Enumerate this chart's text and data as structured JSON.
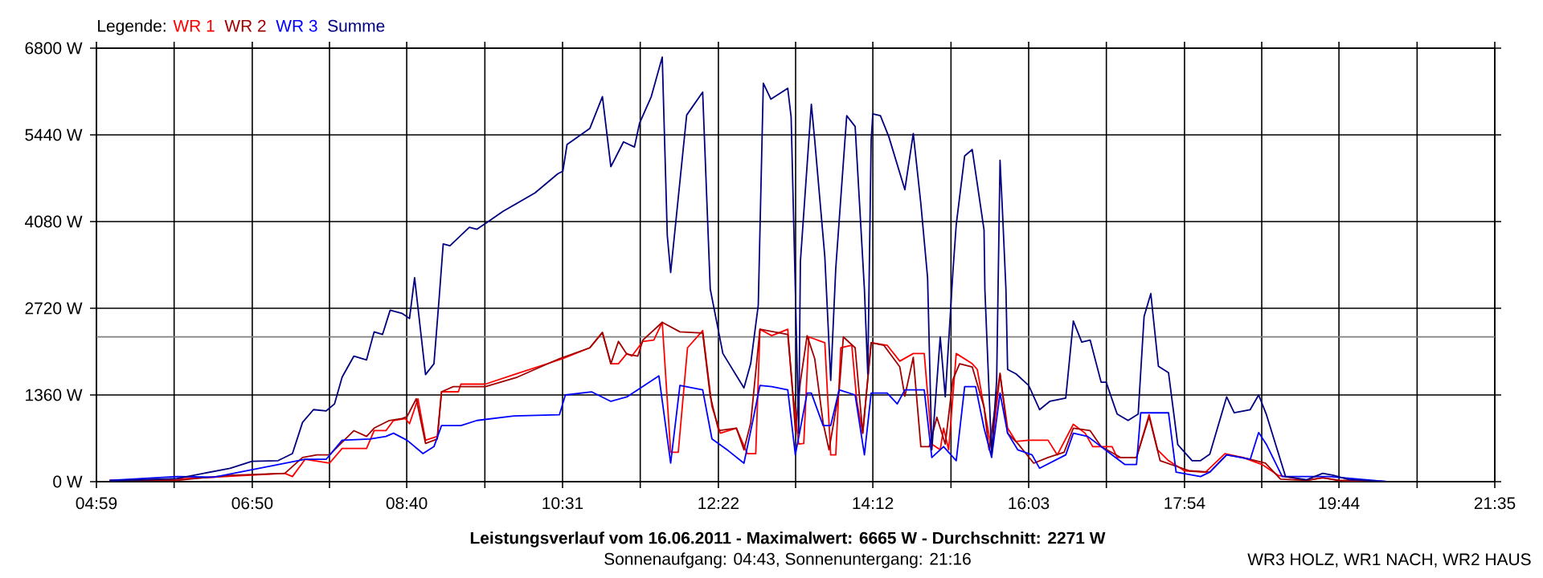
{
  "chart_data": {
    "type": "line",
    "title": "Leistungsverlauf vom 16.06.2011 - Maximalwert: 6665 W - Durchschnitt: 2271 W",
    "subtitle": "Sonnenaufgang: 04:43, Sonnenuntergang: 21:16",
    "annotations": [
      "WR3 HOLZ, WR1 NACH, WR2 HAUS"
    ],
    "legend_title": "Legende:",
    "legend": "top left",
    "grid": true,
    "line_style": "solid",
    "xlim": [
      4.98333,
      21.58333
    ],
    "xticks": [
      {
        "value": 4.98333,
        "label": "04:59"
      },
      {
        "value": 5.9056,
        "label": null
      },
      {
        "value": 6.83333,
        "label": "06:50"
      },
      {
        "value": 7.75,
        "label": null
      },
      {
        "value": 8.66667,
        "label": "08:40"
      },
      {
        "value": 9.5944,
        "label": null
      },
      {
        "value": 10.51667,
        "label": "10:31"
      },
      {
        "value": 11.4389,
        "label": null
      },
      {
        "value": 12.36667,
        "label": "12:22"
      },
      {
        "value": 13.2833,
        "label": null
      },
      {
        "value": 14.2,
        "label": "14:12"
      },
      {
        "value": 15.1278,
        "label": null
      },
      {
        "value": 16.05,
        "label": "16:03"
      },
      {
        "value": 16.9722,
        "label": null
      },
      {
        "value": 17.9,
        "label": "17:54"
      },
      {
        "value": 18.8167,
        "label": null
      },
      {
        "value": 19.73333,
        "label": "19:44"
      },
      {
        "value": 20.6611,
        "label": null
      },
      {
        "value": 21.58333,
        "label": "21:35"
      }
    ],
    "ylim": [
      0,
      6800
    ],
    "yticks": [
      {
        "value": 0,
        "label": "0 W"
      },
      {
        "value": 1360,
        "label": "1360 W"
      },
      {
        "value": 2720,
        "label": "2720 W"
      },
      {
        "value": 4080,
        "label": "4080 W"
      },
      {
        "value": 5440,
        "label": "5440 W"
      },
      {
        "value": 6800,
        "label": "6800 W"
      }
    ],
    "ref_lines": [
      {
        "axis": "y",
        "value": 2271,
        "color": "#808080"
      }
    ],
    "series": [
      {
        "name": "WR 1",
        "color": "#ff0000",
        "x": [
          5.14,
          5.94,
          6.51,
          7.22,
          7.31,
          7.46,
          7.75,
          7.9,
          8.19,
          8.28,
          8.42,
          8.51,
          8.65,
          8.7,
          8.8,
          8.89,
          9.03,
          9.08,
          9.28,
          9.31,
          9.6,
          9.94,
          10.52,
          10.84,
          10.99,
          11.09,
          11.18,
          11.28,
          11.34,
          11.47,
          11.6,
          11.7,
          11.8,
          11.89,
          12.0,
          12.18,
          12.29,
          12.39,
          12.58,
          12.71,
          12.81,
          12.86,
          13.0,
          13.19,
          13.24,
          13.32,
          13.38,
          13.44,
          13.63,
          13.7,
          13.76,
          13.82,
          13.95,
          14.01,
          14.08,
          14.18,
          14.37,
          14.52,
          14.68,
          14.81,
          14.9,
          15.0,
          15.04,
          15.1,
          15.19,
          15.38,
          15.44,
          15.61,
          15.71,
          15.8,
          15.9,
          16.05,
          16.28,
          16.39,
          16.58,
          16.72,
          16.81,
          17.04,
          17.1,
          17.33,
          17.48,
          17.58,
          17.71,
          17.9,
          18.15,
          18.38,
          18.59,
          18.82,
          19.01,
          19.35,
          19.54,
          19.73,
          20.3
        ],
        "values": [
          20,
          40,
          80,
          130,
          80,
          350,
          290,
          520,
          520,
          800,
          800,
          960,
          990,
          910,
          1300,
          650,
          710,
          1410,
          1410,
          1530,
          1530,
          1680,
          1930,
          2100,
          2340,
          1850,
          1850,
          2010,
          1970,
          2200,
          2220,
          2500,
          460,
          460,
          2100,
          2370,
          1180,
          760,
          840,
          440,
          440,
          2390,
          2290,
          2390,
          1510,
          590,
          600,
          2270,
          2180,
          420,
          420,
          2100,
          2140,
          1260,
          760,
          2180,
          2140,
          1890,
          2010,
          2010,
          590,
          500,
          840,
          500,
          2010,
          1850,
          1760,
          500,
          1680,
          840,
          630,
          650,
          650,
          420,
          900,
          760,
          550,
          550,
          380,
          380,
          1050,
          500,
          330,
          170,
          150,
          440,
          380,
          270,
          100,
          20,
          60,
          20,
          0
        ]
      },
      {
        "name": "WR 2",
        "color": "#a00000",
        "x": [
          5.14,
          5.94,
          6.57,
          7.22,
          7.43,
          7.6,
          7.75,
          8.04,
          8.19,
          8.28,
          8.46,
          8.61,
          8.67,
          8.78,
          8.89,
          9.03,
          9.08,
          9.22,
          9.6,
          9.98,
          10.48,
          10.84,
          10.99,
          11.09,
          11.18,
          11.28,
          11.41,
          11.47,
          11.7,
          11.91,
          12.18,
          12.27,
          12.37,
          12.58,
          12.67,
          12.75,
          12.86,
          13.19,
          13.24,
          13.28,
          13.34,
          13.42,
          13.51,
          13.61,
          13.68,
          13.8,
          13.85,
          13.99,
          14.08,
          14.18,
          14.33,
          14.52,
          14.58,
          14.68,
          14.77,
          14.87,
          14.96,
          15.06,
          15.15,
          15.23,
          15.38,
          15.52,
          15.58,
          15.71,
          15.8,
          15.92,
          16.11,
          16.28,
          16.47,
          16.58,
          16.78,
          16.91,
          17.14,
          17.33,
          17.48,
          17.61,
          17.96,
          18.2,
          18.4,
          18.59,
          18.86,
          19.04,
          19.35,
          19.54,
          19.73,
          20.3
        ],
        "values": [
          20,
          20,
          100,
          130,
          380,
          420,
          420,
          800,
          710,
          840,
          960,
          990,
          1020,
          1300,
          600,
          670,
          1410,
          1490,
          1490,
          1640,
          1930,
          2100,
          2340,
          1850,
          2200,
          2000,
          1970,
          2220,
          2500,
          2350,
          2330,
          1340,
          800,
          840,
          500,
          920,
          2390,
          2310,
          1570,
          800,
          1570,
          2290,
          1930,
          920,
          500,
          1430,
          2270,
          2100,
          760,
          2180,
          2140,
          1800,
          1340,
          1950,
          550,
          550,
          1010,
          590,
          1600,
          1850,
          1800,
          1170,
          500,
          1700,
          760,
          600,
          290,
          380,
          460,
          840,
          800,
          550,
          380,
          380,
          1020,
          330,
          170,
          150,
          420,
          380,
          290,
          40,
          20,
          60,
          20,
          0
        ]
      },
      {
        "name": "WR 3",
        "color": "#0000ff",
        "x": [
          5.14,
          5.94,
          6.38,
          7.46,
          7.71,
          7.9,
          8.23,
          8.42,
          8.51,
          8.67,
          8.86,
          8.99,
          9.08,
          9.31,
          9.5,
          9.94,
          10.48,
          10.55,
          10.86,
          11.09,
          11.28,
          11.66,
          11.8,
          11.91,
          12.18,
          12.29,
          12.48,
          12.67,
          12.77,
          12.86,
          13.0,
          13.19,
          13.28,
          13.42,
          13.47,
          13.61,
          13.7,
          13.8,
          13.99,
          14.1,
          14.18,
          14.37,
          14.49,
          14.58,
          14.81,
          14.9,
          15.04,
          15.19,
          15.29,
          15.42,
          15.52,
          15.61,
          15.71,
          15.8,
          15.92,
          16.09,
          16.18,
          16.49,
          16.58,
          16.75,
          17.0,
          17.19,
          17.33,
          17.38,
          17.71,
          17.8,
          18.09,
          18.2,
          18.4,
          18.68,
          18.78,
          18.87,
          19.06,
          19.62,
          20.3
        ],
        "values": [
          20,
          80,
          70,
          350,
          350,
          650,
          670,
          710,
          760,
          650,
          440,
          550,
          880,
          880,
          960,
          1030,
          1050,
          1360,
          1410,
          1260,
          1330,
          1660,
          290,
          1510,
          1440,
          670,
          490,
          290,
          920,
          1510,
          1490,
          1440,
          420,
          1390,
          1390,
          880,
          880,
          1440,
          1360,
          420,
          1390,
          1390,
          1220,
          1440,
          1440,
          380,
          550,
          330,
          1490,
          1490,
          840,
          380,
          1390,
          760,
          500,
          420,
          210,
          420,
          760,
          710,
          460,
          270,
          270,
          1080,
          1080,
          150,
          80,
          150,
          420,
          350,
          770,
          590,
          80,
          80,
          0
        ]
      },
      {
        "name": "Summe",
        "color": "#000080",
        "x": [
          5.14,
          5.94,
          6.57,
          6.83,
          7.14,
          7.31,
          7.43,
          7.56,
          7.71,
          7.81,
          7.9,
          8.04,
          8.19,
          8.28,
          8.38,
          8.47,
          8.61,
          8.7,
          8.76,
          8.89,
          8.99,
          9.05,
          9.1,
          9.18,
          9.41,
          9.5,
          9.6,
          9.81,
          10.19,
          10.46,
          10.52,
          10.57,
          10.84,
          10.99,
          11.09,
          11.24,
          11.37,
          11.43,
          11.57,
          11.7,
          11.76,
          11.8,
          11.99,
          12.18,
          12.27,
          12.42,
          12.67,
          12.75,
          12.84,
          12.9,
          12.99,
          13.19,
          13.23,
          13.28,
          13.32,
          13.34,
          13.47,
          13.51,
          13.63,
          13.7,
          13.76,
          13.89,
          13.99,
          14.1,
          14.14,
          14.18,
          14.2,
          14.29,
          14.39,
          14.58,
          14.68,
          14.77,
          14.85,
          14.9,
          15.0,
          15.06,
          15.15,
          15.19,
          15.29,
          15.38,
          15.52,
          15.53,
          15.61,
          15.67,
          15.71,
          15.74,
          15.78,
          15.8,
          15.9,
          16.05,
          16.18,
          16.3,
          16.49,
          16.58,
          16.68,
          16.78,
          16.91,
          16.97,
          17.1,
          17.23,
          17.35,
          17.42,
          17.5,
          17.59,
          17.71,
          17.82,
          17.99,
          18.09,
          18.2,
          18.4,
          18.49,
          18.68,
          18.78,
          18.87,
          19.1,
          19.35,
          19.54,
          19.67,
          19.86,
          20.3
        ],
        "values": [
          10,
          50,
          210,
          320,
          330,
          440,
          930,
          1130,
          1110,
          1220,
          1640,
          1970,
          1910,
          2350,
          2310,
          2690,
          2640,
          2560,
          3200,
          1680,
          1850,
          2850,
          3730,
          3700,
          3990,
          3960,
          4050,
          4240,
          4530,
          4830,
          4870,
          5290,
          5540,
          6040,
          4940,
          5330,
          5250,
          5620,
          6040,
          6660,
          3860,
          3280,
          5750,
          6110,
          3020,
          2010,
          1470,
          1850,
          2770,
          6250,
          6000,
          6170,
          5720,
          3020,
          760,
          3450,
          5920,
          5360,
          3530,
          1590,
          3350,
          5740,
          5570,
          3020,
          1690,
          5360,
          5770,
          5740,
          5410,
          4580,
          5460,
          4360,
          3200,
          500,
          2270,
          1330,
          3280,
          4030,
          5110,
          5210,
          3950,
          3020,
          430,
          1590,
          5040,
          4210,
          3020,
          1760,
          1690,
          1510,
          1130,
          1260,
          1310,
          2520,
          2190,
          2220,
          1560,
          1560,
          1060,
          960,
          1060,
          2590,
          2950,
          1810,
          1710,
          580,
          330,
          330,
          430,
          1330,
          1080,
          1130,
          1360,
          1060,
          80,
          30,
          130,
          100,
          30,
          0
        ]
      }
    ]
  }
}
